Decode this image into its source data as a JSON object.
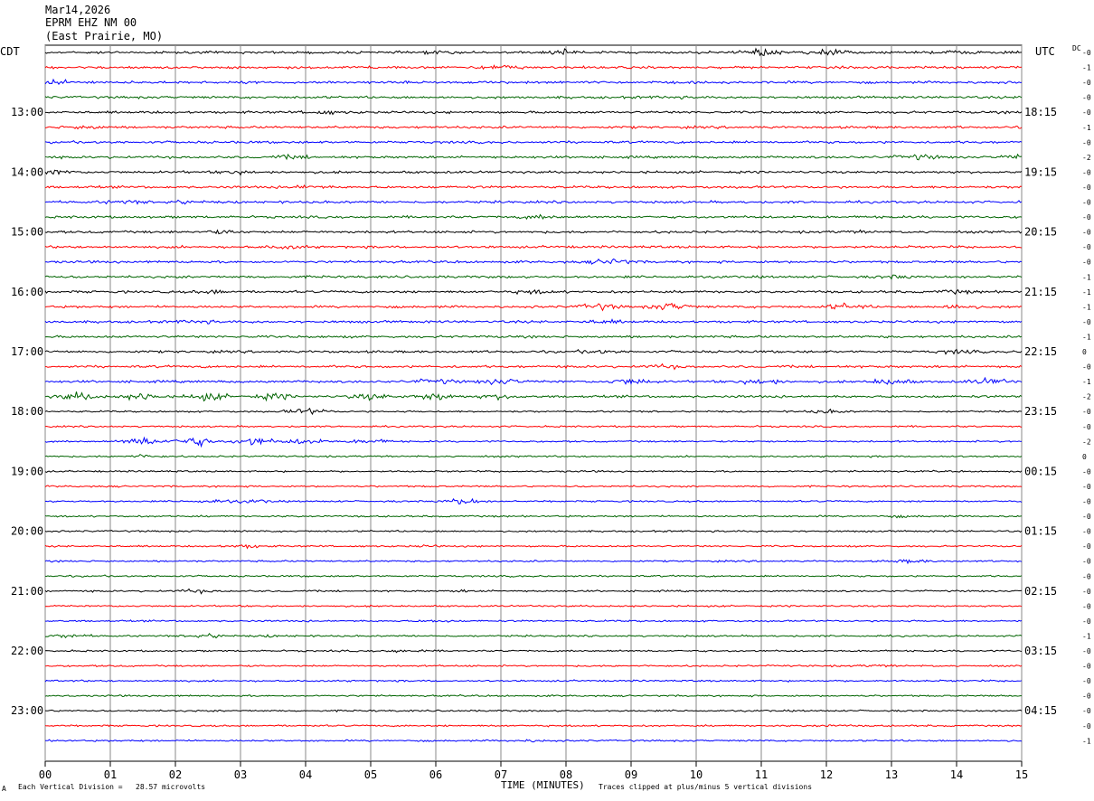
{
  "header": {
    "date": "Mar14,2026",
    "station": "EPRM EHZ NM 00",
    "location": "(East Prairie, MO)"
  },
  "corner_labels": {
    "left": "CDT",
    "right": "UTC",
    "dc": "DC"
  },
  "footer": {
    "mark": "A",
    "division": "Each Vertical Division =   28.57 microvolts",
    "clip": "Traces clipped at plus/minus 5 vertical divisions"
  },
  "colors": [
    "#000000",
    "#ff0000",
    "#0000ff",
    "#006400"
  ],
  "chart_data": {
    "type": "line",
    "title": "EPRM EHZ NM 00",
    "xlabel": "TIME (MINUTES)",
    "ylabel": "",
    "xlim": [
      0,
      15
    ],
    "x_ticks": [
      "00",
      "01",
      "02",
      "03",
      "04",
      "05",
      "06",
      "07",
      "08",
      "09",
      "10",
      "11",
      "12",
      "13",
      "14",
      "15"
    ],
    "left_time_labels": [
      "13:00",
      "14:00",
      "15:00",
      "16:00",
      "17:00",
      "18:00",
      "19:00",
      "20:00",
      "21:00",
      "22:00",
      "23:00"
    ],
    "right_time_labels": [
      "18:15",
      "19:15",
      "20:15",
      "21:15",
      "22:15",
      "23:15",
      "00:15",
      "01:15",
      "02:15",
      "03:15",
      "04:15"
    ],
    "dc_offsets": [
      "-0",
      "-1",
      "-0",
      "-0",
      "-0",
      "-1",
      "-0",
      "-2",
      "-0",
      "-0",
      "-0",
      "-0",
      "-0",
      "-0",
      "-0",
      "-1",
      "-1",
      "-1",
      "-0",
      "-1",
      "0",
      "-0",
      "-1",
      "-2",
      "-0",
      "-0",
      "-2",
      "0",
      "-0",
      "-0",
      "-0",
      "-0",
      "-0",
      "-0",
      "-0",
      "-0",
      "-0",
      "-0",
      "-0",
      "-1",
      "-0",
      "-0",
      "-0",
      "-0",
      "-0",
      "-0",
      "-1"
    ],
    "grid": true,
    "series_count": 47,
    "trace_activity": [
      [
        [
          3,
          0
        ],
        [
          5.3,
          0
        ],
        [
          6,
          1
        ],
        [
          8,
          3
        ],
        [
          11,
          5
        ],
        [
          12,
          4
        ],
        [
          14,
          2
        ]
      ],
      [
        [
          5,
          1
        ],
        [
          7,
          3
        ]
      ],
      [
        [
          0.1,
          3
        ]
      ],
      [
        [
          9.5,
          1
        ]
      ],
      [
        [
          4.3,
          2
        ]
      ],
      [
        [
          0.6,
          2
        ]
      ],
      [],
      [
        [
          3.8,
          2
        ],
        [
          13.4,
          3
        ],
        [
          15,
          3
        ]
      ],
      [
        [
          0.1,
          3
        ],
        [
          3,
          2
        ]
      ],
      [
        [
          4,
          2
        ]
      ],
      [
        [
          1.2,
          2
        ],
        [
          2.1,
          2
        ]
      ],
      [
        [
          7.6,
          2
        ]
      ],
      [
        [
          2.7,
          2
        ],
        [
          12.5,
          1
        ]
      ],
      [
        [
          3.7,
          2
        ]
      ],
      [
        [
          8.7,
          4
        ]
      ],
      [
        [
          13.1,
          2
        ]
      ],
      [
        [
          2.6,
          2
        ],
        [
          7.5,
          2
        ],
        [
          14.0,
          2
        ]
      ],
      [
        [
          8.5,
          4
        ],
        [
          9.6,
          5
        ],
        [
          12.3,
          4
        ],
        [
          14,
          3
        ]
      ],
      [
        [
          2.3,
          2
        ],
        [
          8.6,
          2
        ]
      ],
      [],
      [
        [
          8.5,
          2
        ],
        [
          14,
          2
        ]
      ],
      [
        [
          9.5,
          2
        ]
      ],
      [
        [
          6,
          3
        ],
        [
          7,
          4
        ],
        [
          9,
          4
        ],
        [
          11,
          4
        ],
        [
          13,
          4
        ],
        [
          14.5,
          4
        ]
      ],
      [
        [
          0.5,
          5
        ],
        [
          1.5,
          5
        ],
        [
          2.5,
          5
        ],
        [
          3.5,
          4
        ],
        [
          5,
          4
        ],
        [
          6,
          5
        ],
        [
          7,
          3
        ]
      ],
      [
        [
          4,
          4
        ],
        [
          12,
          2
        ]
      ],
      [],
      [
        [
          1.5,
          6
        ],
        [
          2.3,
          7
        ],
        [
          3.2,
          6
        ],
        [
          4,
          4
        ],
        [
          5,
          3
        ]
      ],
      [
        [
          1.5,
          2
        ]
      ],
      [],
      [],
      [
        [
          2.6,
          2
        ],
        [
          3.2,
          2
        ],
        [
          6.4,
          4
        ]
      ],
      [
        [
          13.1,
          1
        ]
      ],
      [],
      [
        [
          3.1,
          2
        ],
        [
          5.9,
          1
        ]
      ],
      [
        [
          13.3,
          2
        ]
      ],
      [],
      [
        [
          2.3,
          2
        ],
        [
          6.5,
          1
        ]
      ],
      [],
      [
        [
          6,
          1
        ]
      ],
      [
        [
          0.4,
          2
        ],
        [
          2.5,
          3
        ],
        [
          3.5,
          1
        ]
      ],
      [
        [
          5.5,
          2
        ]
      ],
      [
        [
          12.8,
          1
        ]
      ],
      [],
      [],
      [],
      [
        [
          12,
          1
        ]
      ],
      [
        [
          7.5,
          1
        ]
      ]
    ]
  }
}
